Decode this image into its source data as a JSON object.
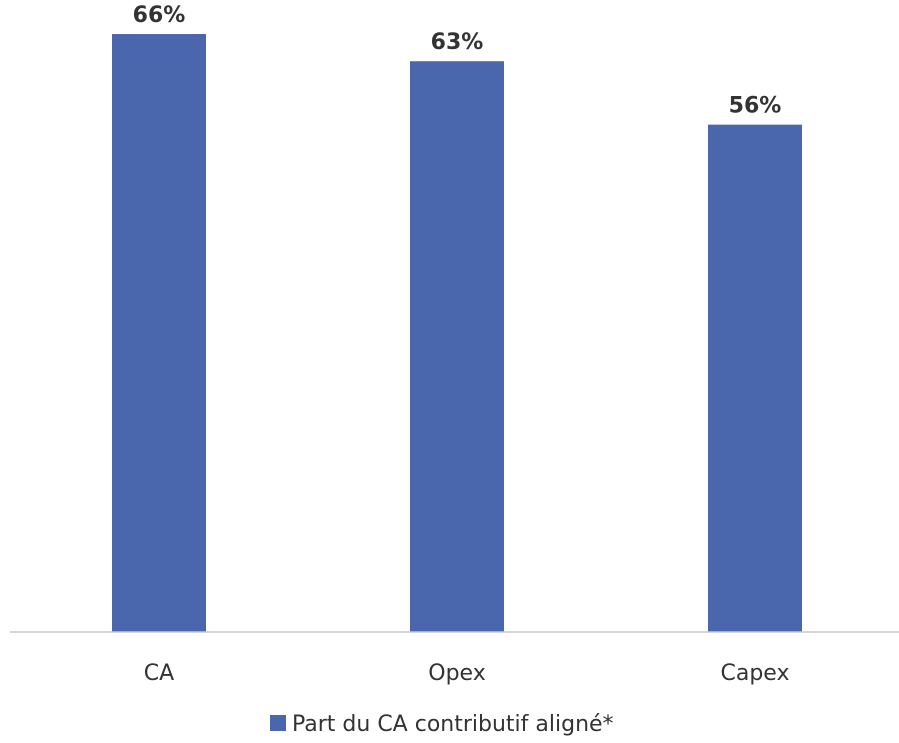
{
  "chart_data": {
    "type": "bar",
    "categories": [
      "CA",
      "Opex",
      "Capex"
    ],
    "series": [
      {
        "name": "Part du CA contributif aligné*",
        "values": [
          66,
          63,
          56
        ],
        "labels": [
          "66%",
          "63%",
          "56%"
        ],
        "color": "#4a66ac"
      }
    ],
    "ylim": [
      0,
      70
    ],
    "grid": false,
    "legend": "bottom-center",
    "axis_color": "#c8c8c8"
  }
}
